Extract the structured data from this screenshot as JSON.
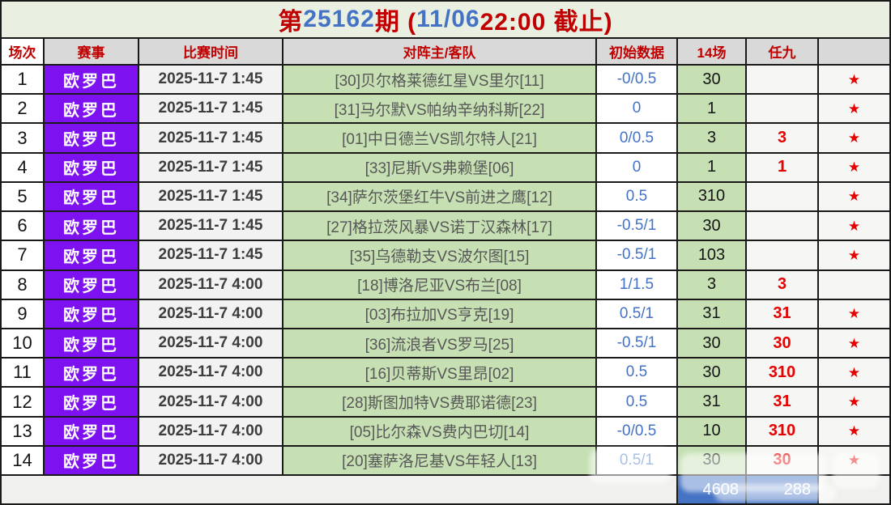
{
  "title": {
    "segments": [
      {
        "text": "第",
        "color": "#c00000"
      },
      {
        "text": "25162",
        "color": "#4472c4"
      },
      {
        "text": "期 (",
        "color": "#c00000"
      },
      {
        "text": "11/06",
        "color": "#4472c4"
      },
      {
        "text": " 22:00 截止)",
        "color": "#c00000"
      }
    ]
  },
  "header": {
    "cols": [
      "场次",
      "赛事",
      "比赛时间",
      "对阵主/客队",
      "初始数据",
      "14场",
      "任九",
      ""
    ]
  },
  "rows": [
    {
      "num": "1",
      "league": "欧罗巴",
      "time": "2025-11-7 1:45",
      "match": "[30]贝尔格莱德红星VS里尔[11]",
      "odds": "-0/0.5",
      "c14": "30",
      "r9": "",
      "star": "★"
    },
    {
      "num": "2",
      "league": "欧罗巴",
      "time": "2025-11-7 1:45",
      "match": "[31]马尔默VS帕纳辛纳科斯[22]",
      "odds": "0",
      "c14": "1",
      "r9": "",
      "star": "★"
    },
    {
      "num": "3",
      "league": "欧罗巴",
      "time": "2025-11-7 1:45",
      "match": "[01]中日德兰VS凯尔特人[21]",
      "odds": "0/0.5",
      "c14": "3",
      "r9": "3",
      "star": "★"
    },
    {
      "num": "4",
      "league": "欧罗巴",
      "time": "2025-11-7 1:45",
      "match": "[33]尼斯VS弗赖堡[06]",
      "odds": "0",
      "c14": "1",
      "r9": "1",
      "star": "★"
    },
    {
      "num": "5",
      "league": "欧罗巴",
      "time": "2025-11-7 1:45",
      "match": "[34]萨尔茨堡红牛VS前进之鹰[12]",
      "odds": "0.5",
      "c14": "310",
      "r9": "",
      "star": "★"
    },
    {
      "num": "6",
      "league": "欧罗巴",
      "time": "2025-11-7 1:45",
      "match": "[27]格拉茨风暴VS诺丁汉森林[17]",
      "odds": "-0.5/1",
      "c14": "30",
      "r9": "",
      "star": "★"
    },
    {
      "num": "7",
      "league": "欧罗巴",
      "time": "2025-11-7 1:45",
      "match": "[35]乌德勒支VS波尔图[15]",
      "odds": "-0.5/1",
      "c14": "103",
      "r9": "",
      "star": "★"
    },
    {
      "num": "8",
      "league": "欧罗巴",
      "time": "2025-11-7 4:00",
      "match": "[18]博洛尼亚VS布兰[08]",
      "odds": "1/1.5",
      "c14": "3",
      "r9": "3",
      "star": ""
    },
    {
      "num": "9",
      "league": "欧罗巴",
      "time": "2025-11-7 4:00",
      "match": "[03]布拉加VS亨克[19]",
      "odds": "0.5/1",
      "c14": "31",
      "r9": "31",
      "star": "★"
    },
    {
      "num": "10",
      "league": "欧罗巴",
      "time": "2025-11-7 4:00",
      "match": "[36]流浪者VS罗马[25]",
      "odds": "-0.5/1",
      "c14": "30",
      "r9": "30",
      "star": "★"
    },
    {
      "num": "11",
      "league": "欧罗巴",
      "time": "2025-11-7 4:00",
      "match": "[16]贝蒂斯VS里昂[02]",
      "odds": "0.5",
      "c14": "30",
      "r9": "310",
      "star": "★"
    },
    {
      "num": "12",
      "league": "欧罗巴",
      "time": "2025-11-7 4:00",
      "match": "[28]斯图加特VS费耶诺德[23]",
      "odds": "0.5",
      "c14": "31",
      "r9": "31",
      "star": "★"
    },
    {
      "num": "13",
      "league": "欧罗巴",
      "time": "2025-11-7 4:00",
      "match": "[05]比尔森VS费内巴切[14]",
      "odds": "-0/0.5",
      "c14": "10",
      "r9": "310",
      "star": "★"
    },
    {
      "num": "14",
      "league": "欧罗巴",
      "time": "2025-11-7 4:00",
      "match": "[20]塞萨洛尼基VS年轻人[13]",
      "odds": "0.5/1",
      "c14": "30",
      "r9": "30",
      "star": "★"
    }
  ],
  "totals": {
    "sum14": "4608",
    "ren9": "288"
  },
  "colors": {
    "red": "#c00000",
    "blue": "#4472c4",
    "purple": "#7d11f0",
    "green": "#c6e0b4",
    "headerBg": "#d9d9d9",
    "totalBlue": "#4472c4",
    "pageBg": "#e9f0e2"
  }
}
